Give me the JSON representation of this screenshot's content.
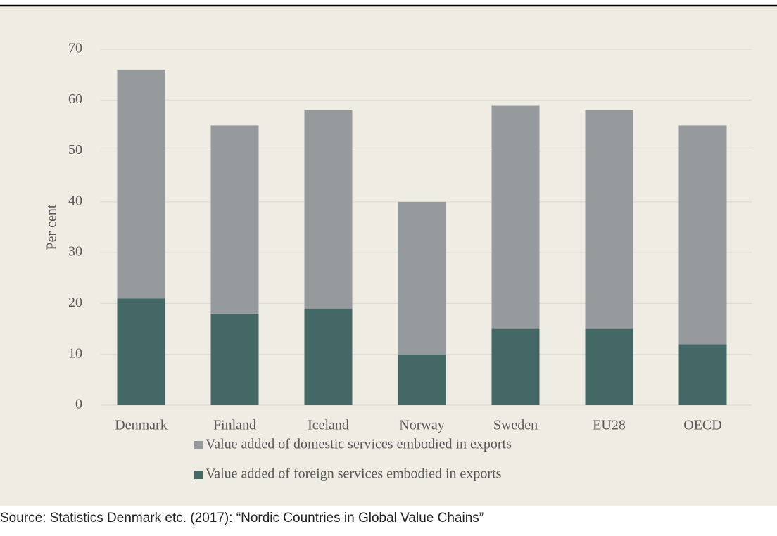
{
  "chart_data": {
    "type": "bar",
    "stacked": true,
    "categories": [
      "Denmark",
      "Finland",
      "Iceland",
      "Norway",
      "Sweden",
      "EU28",
      "OECD"
    ],
    "series": [
      {
        "name": "Value added of foreign services embodied in exports",
        "color": "#436866",
        "values": [
          21,
          18,
          19,
          10,
          15,
          15,
          12
        ]
      },
      {
        "name": "Value added of domestic services embodied in exports",
        "color": "#969a9d",
        "values": [
          45,
          37,
          39,
          30,
          44,
          43,
          43
        ]
      }
    ],
    "y_label": "Per cent",
    "ylim": [
      0,
      70
    ],
    "yticks": [
      0,
      10,
      20,
      30,
      40,
      50,
      60,
      70
    ],
    "grid": true,
    "legend": "bottom",
    "source": "Source: Statistics Denmark etc. (2017): “Nordic Countries in Global Value Chains”"
  }
}
